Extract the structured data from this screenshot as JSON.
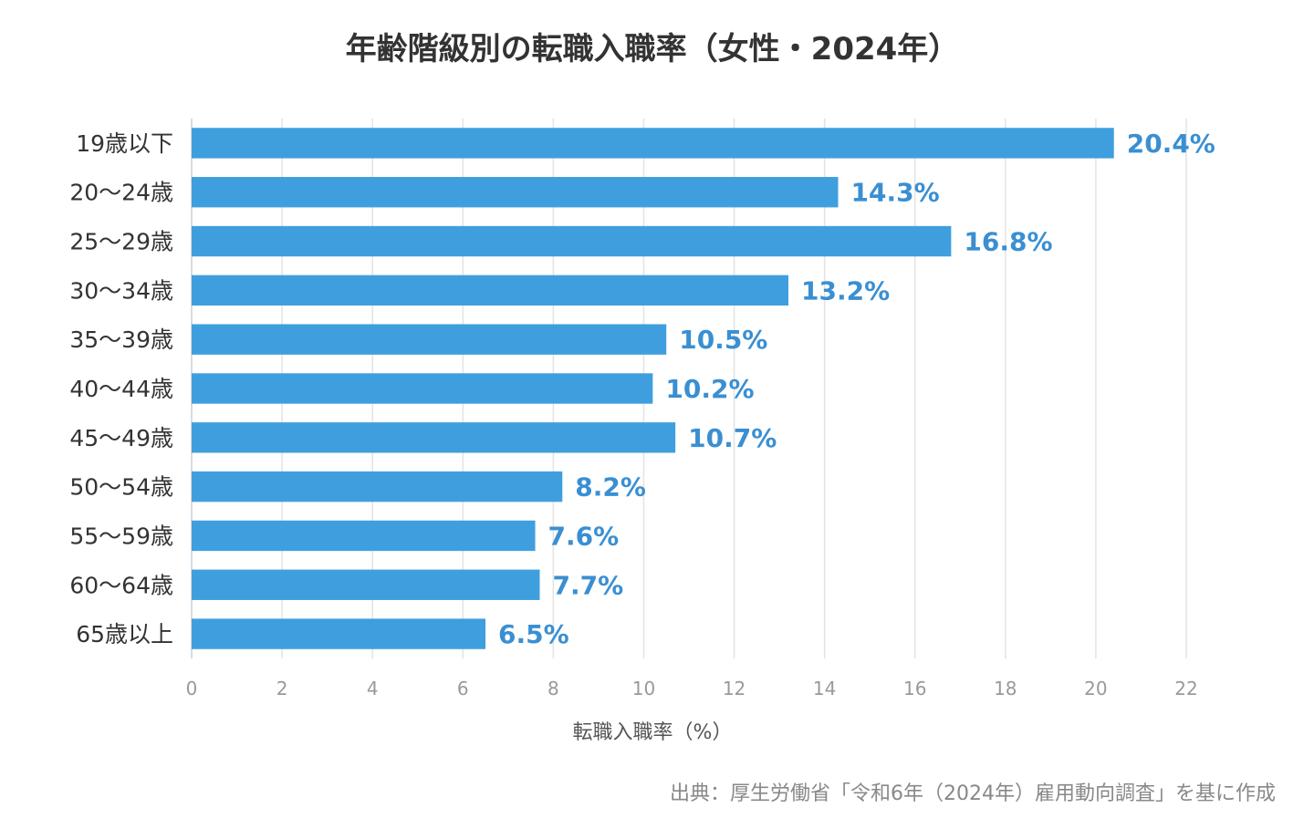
{
  "chart_data": {
    "type": "bar",
    "orientation": "horizontal",
    "title": "年齢階級別の転職入職率（女性・2024年）",
    "xlabel": "転職入職率（%）",
    "ylabel": "",
    "xlim": [
      0,
      22
    ],
    "xticks": [
      0,
      2,
      4,
      6,
      8,
      10,
      12,
      14,
      16,
      18,
      20,
      22
    ],
    "grid": true,
    "legend": "none",
    "categories": [
      "19歳以下",
      "20〜24歳",
      "25〜29歳",
      "30〜34歳",
      "35〜39歳",
      "40〜44歳",
      "45〜49歳",
      "50〜54歳",
      "55〜59歳",
      "60〜64歳",
      "65歳以上"
    ],
    "values": [
      20.4,
      14.3,
      16.8,
      13.2,
      10.5,
      10.2,
      10.7,
      8.2,
      7.6,
      7.7,
      6.5
    ],
    "value_labels": [
      "20.4%",
      "14.3%",
      "16.8%",
      "13.2%",
      "10.5%",
      "10.2%",
      "10.7%",
      "8.2%",
      "7.6%",
      "7.7%",
      "6.5%"
    ],
    "source": "出典：厚生労働省「令和6年（2024年）雇用動向調査」を基に作成",
    "colors": {
      "bar": "#3f9fde",
      "label": "#3a8fd2",
      "grid": "#e3e3e3"
    }
  }
}
